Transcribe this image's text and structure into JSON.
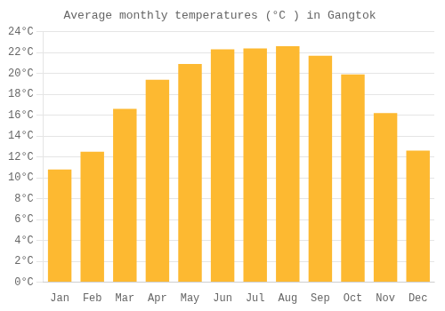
{
  "chart_data": {
    "type": "bar",
    "title": "Average monthly temperatures (°C ) in Gangtok",
    "categories": [
      "Jan",
      "Feb",
      "Mar",
      "Apr",
      "May",
      "Jun",
      "Jul",
      "Aug",
      "Sep",
      "Oct",
      "Nov",
      "Dec"
    ],
    "values": [
      10.8,
      12.5,
      16.6,
      19.4,
      20.9,
      22.3,
      22.4,
      22.6,
      21.7,
      19.9,
      16.2,
      12.6
    ],
    "color": "#FDB931",
    "ylim": [
      0,
      24
    ],
    "yticks": [
      {
        "value": 0,
        "label": "0°C"
      },
      {
        "value": 2,
        "label": "2°C"
      },
      {
        "value": 4,
        "label": "4°C"
      },
      {
        "value": 6,
        "label": "6°C"
      },
      {
        "value": 8,
        "label": "8°C"
      },
      {
        "value": 10,
        "label": "10°C"
      },
      {
        "value": 12,
        "label": "12°C"
      },
      {
        "value": 14,
        "label": "14°C"
      },
      {
        "value": 16,
        "label": "16°C"
      },
      {
        "value": 18,
        "label": "18°C"
      },
      {
        "value": 20,
        "label": "20°C"
      },
      {
        "value": 22,
        "label": "22°C"
      },
      {
        "value": 24,
        "label": "24°C"
      }
    ],
    "grid": true
  }
}
